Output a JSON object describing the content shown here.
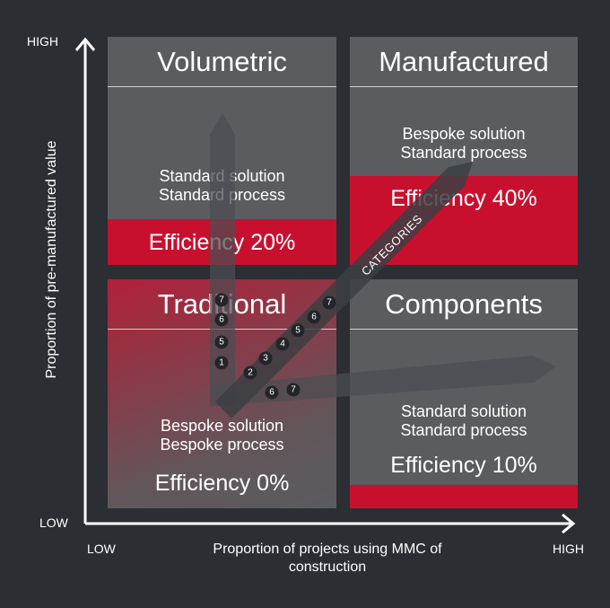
{
  "axes": {
    "y_high": "HIGH",
    "y_low": "LOW",
    "x_low": "LOW",
    "x_high": "HIGH",
    "y_title": "Proportion of pre-manufactured value",
    "x_title_line1": "Proportion of projects using MMC of",
    "x_title_line2": "construction"
  },
  "quadrants": {
    "volumetric": {
      "title": "Volumetric",
      "line1": "Standard solution",
      "line2": "Standard process",
      "efficiency": "Efficiency 20%"
    },
    "manufactured": {
      "title": "Manufactured",
      "line1": "Bespoke solution",
      "line2": "Standard process",
      "efficiency": "Efficiency 40%"
    },
    "traditional": {
      "title": "Traditional",
      "line1": "Bespoke solution",
      "line2": "Bespoke process",
      "efficiency": "Efficiency 0%"
    },
    "components": {
      "title": "Components",
      "line1": "Standard solution",
      "line2": "Standard process",
      "efficiency": "Efficiency 10%"
    }
  },
  "categories_label": "CATEGORIES",
  "vertical_arrow_numbers": [
    "1",
    "5",
    "6",
    "7"
  ],
  "diagonal_arrow_numbers": [
    "2",
    "3",
    "4",
    "5",
    "6",
    "7"
  ],
  "horizontal_arrow_numbers": [
    "6",
    "7"
  ],
  "colors": {
    "background": "#2b2e33",
    "panel": "#5a5c60",
    "accent": "#c8102e"
  }
}
